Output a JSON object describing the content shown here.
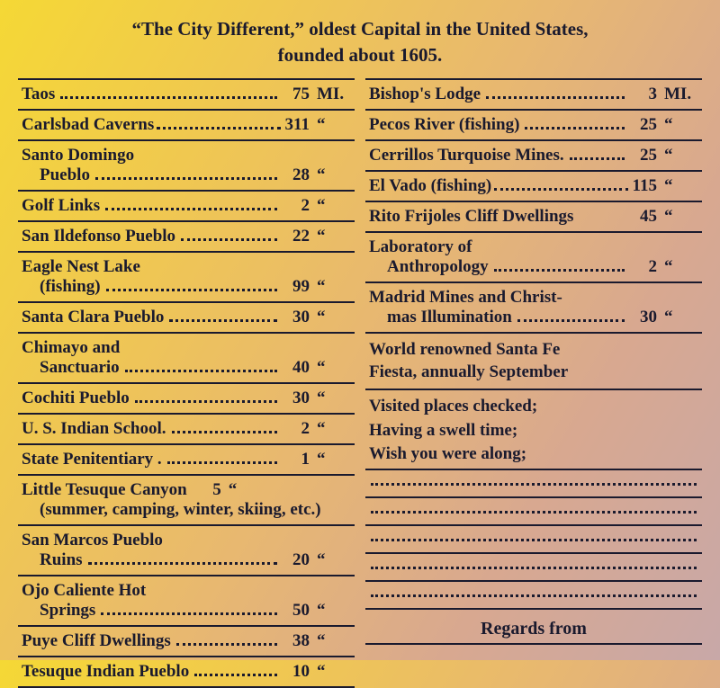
{
  "header": {
    "line1": "“The City Different,” oldest Capital in the United States,",
    "line2": "founded about 1605."
  },
  "left": [
    {
      "name": "Taos",
      "dist": "75",
      "unit": "MI."
    },
    {
      "name": "Carlsbad Caverns",
      "dist": "311",
      "unit": "“",
      "tight": true
    },
    {
      "name": "Santo Domingo",
      "sub": "Pueblo",
      "dist": "28",
      "unit": "“"
    },
    {
      "name": "Golf Links",
      "dist": "2",
      "unit": "“"
    },
    {
      "name": "San Ildefonso Pueblo",
      "dist": "22",
      "unit": "“"
    },
    {
      "name": "Eagle Nest Lake",
      "sub": "(fishing)",
      "dist": "99",
      "unit": "“"
    },
    {
      "name": "Santa Clara Pueblo",
      "dist": "30",
      "unit": "“"
    },
    {
      "name": "Chimayo and",
      "sub": "Sanctuario",
      "dist": "40",
      "unit": "“"
    },
    {
      "name": "Cochiti Pueblo",
      "dist": "30",
      "unit": "“"
    },
    {
      "name": "U. S. Indian School.",
      "dist": "2",
      "unit": "“"
    },
    {
      "name": "State Penitentiary .",
      "dist": "1",
      "unit": "“"
    },
    {
      "name": "Little Tesuque Canyon",
      "dist": "5",
      "unit": "“",
      "note": "(summer, camping, winter, skiing, etc.)"
    },
    {
      "name": "San Marcos Pueblo",
      "sub": "Ruins",
      "dist": "20",
      "unit": "“"
    },
    {
      "name": "Ojo Caliente Hot",
      "sub": "Springs",
      "dist": "50",
      "unit": "“"
    },
    {
      "name": "Puye Cliff Dwellings",
      "dist": "38",
      "unit": "“"
    },
    {
      "name": "Tesuque Indian Pueblo",
      "dist": "10",
      "unit": "“"
    }
  ],
  "right": [
    {
      "name": "Bishop's Lodge",
      "dist": "3",
      "unit": "MI."
    },
    {
      "name": "Pecos River (fishing)",
      "dist": "25",
      "unit": "“"
    },
    {
      "name": "Cerrillos Turquoise Mines.",
      "dist": "25",
      "unit": "“"
    },
    {
      "name": "El Vado (fishing)",
      "dist": "115",
      "unit": "“",
      "tight": true
    },
    {
      "name": "Rito Frijoles Cliff Dwellings",
      "dist": "45",
      "unit": "“",
      "nodots": true
    },
    {
      "name": "Laboratory of",
      "sub": "Anthropology",
      "dist": "2",
      "unit": "“"
    },
    {
      "name": "Madrid Mines and Christ-",
      "sub": "mas Illumination",
      "dist": "30",
      "unit": "“"
    }
  ],
  "fiesta": {
    "line1": "World renowned Santa Fe",
    "line2": "Fiesta, annually September"
  },
  "messages": [
    "Visited places checked;",
    "Having a swell time;",
    "Wish you were along;"
  ],
  "blank_lines": 5,
  "regards": "Regards from"
}
